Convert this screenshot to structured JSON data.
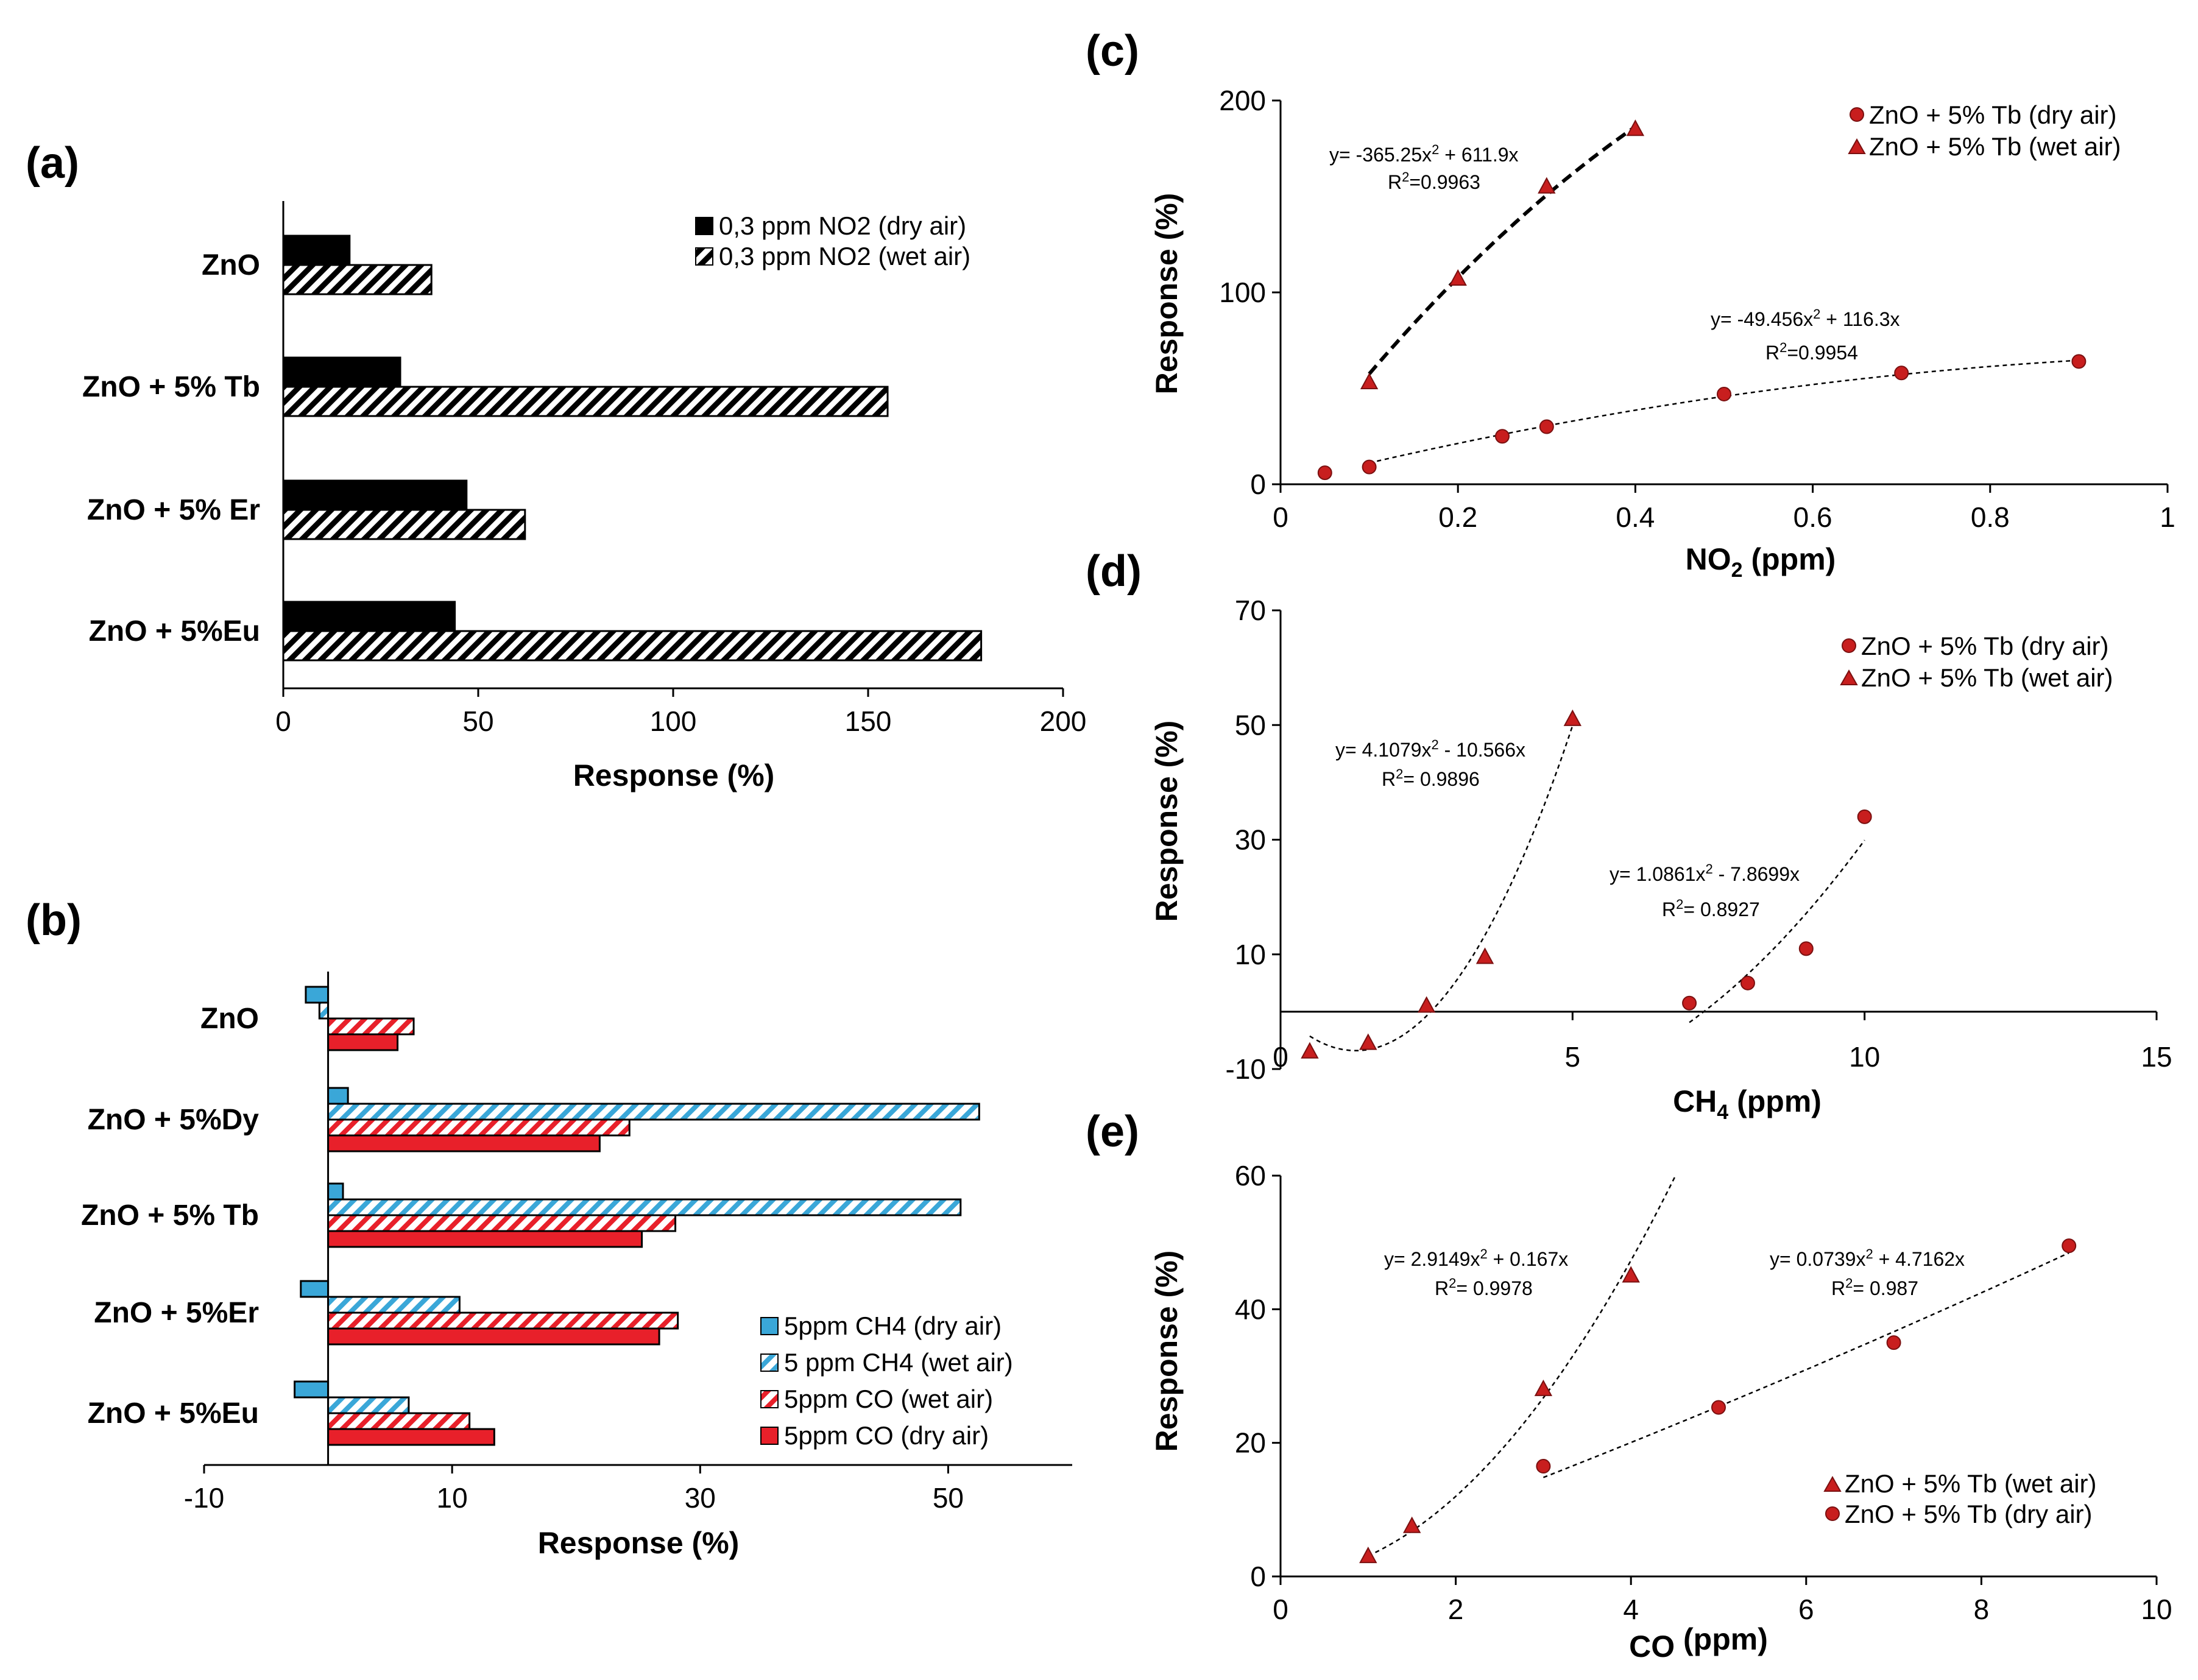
{
  "colors": {
    "dark": "#000000",
    "blue": "#3aa7d8",
    "red": "#e8202a",
    "marker": "#c81e1e"
  },
  "chart_data": [
    {
      "panel": "(a)",
      "type": "bar",
      "orientation": "horizontal",
      "categories": [
        "ZnO",
        "ZnO + 5% Tb",
        "ZnO + 5% Er",
        "ZnO + 5%Eu"
      ],
      "series": [
        {
          "name": "0,3  ppm NO2 (dry air)",
          "values": [
            17,
            30,
            47,
            44
          ],
          "fill": "solid-black"
        },
        {
          "name": "0,3  ppm NO2 (wet air)",
          "values": [
            38,
            155,
            62,
            179
          ],
          "fill": "hatch-black"
        }
      ],
      "xlabel": "Response (%)",
      "xlim": [
        0,
        200
      ],
      "xticks": [
        "0",
        "50",
        "100",
        "150",
        "200"
      ],
      "legend": "top-right"
    },
    {
      "panel": "(b)",
      "type": "bar",
      "orientation": "horizontal",
      "categories": [
        "ZnO",
        "ZnO + 5%Dy",
        "ZnO + 5% Tb",
        "ZnO + 5%Er",
        "ZnO + 5%Eu"
      ],
      "series": [
        {
          "name": "5ppm  CH4 (dry air)",
          "values": [
            -1.8,
            1.6,
            1.2,
            -2.2,
            -2.7
          ],
          "fill": "solid-blue"
        },
        {
          "name": "5 ppm CH4 (wet air)",
          "values": [
            -0.7,
            52.5,
            51,
            10.6,
            6.5
          ],
          "fill": "hatch-blue"
        },
        {
          "name": "5ppm CO (wet air)",
          "values": [
            6.9,
            24.3,
            28,
            28.2,
            11.4
          ],
          "fill": "hatch-red"
        },
        {
          "name": "5ppm CO (dry air)",
          "values": [
            5.6,
            21.9,
            25.3,
            26.7,
            13.4
          ],
          "fill": "solid-red"
        }
      ],
      "xlabel": "Response (%)",
      "xlim": [
        -10,
        60
      ],
      "xticks": [
        "-10",
        "10",
        "30",
        "50"
      ],
      "legend": "bottom-right"
    },
    {
      "panel": "(c)",
      "type": "scatter",
      "xlabel_main": "NO",
      "xlabel_sub": "2",
      "xlabel_rest": " (ppm)",
      "ylabel": "Response (%)",
      "xlim": [
        0,
        1
      ],
      "ylim": [
        0,
        200
      ],
      "xticks": [
        "0",
        "0.2",
        "0.4",
        "0.6",
        "0.8",
        "1"
      ],
      "yticks": [
        "0",
        "100",
        "200"
      ],
      "series": [
        {
          "name": "ZnO + 5% Tb  (dry air)",
          "marker": "circle",
          "x": [
            0.05,
            0.1,
            0.25,
            0.3,
            0.5,
            0.7,
            0.9
          ],
          "y": [
            6,
            9,
            25,
            30,
            47,
            58,
            64
          ],
          "fit": {
            "a": -49.456,
            "b": 116.3,
            "c": 0,
            "x0": 0.1,
            "x1": 0.9
          }
        },
        {
          "name": "ZnO + 5% Tb  (wet air)",
          "marker": "triangle",
          "x": [
            0.1,
            0.2,
            0.3,
            0.4
          ],
          "y": [
            53,
            107,
            155,
            185
          ],
          "fit": {
            "a": -365.25,
            "b": 611.9,
            "c": 0,
            "x0": 0.1,
            "x1": 0.4
          }
        }
      ],
      "equations": [
        {
          "eq_pre": "y= -365.25x",
          "eq_sup": "2",
          "eq_post": " + 611.9x",
          "r_pre": "R",
          "r_sup": "2",
          "r_post": "=0.9963"
        },
        {
          "eq_pre": "y= -49.456x",
          "eq_sup": "2",
          "eq_post": " + 116.3x",
          "r_pre": "R",
          "r_sup": "2",
          "r_post": "=0.9954"
        }
      ],
      "legend": "top-right"
    },
    {
      "panel": "(d)",
      "type": "scatter",
      "xlabel_main": "CH",
      "xlabel_sub": "4",
      "xlabel_rest": " (ppm)",
      "ylabel": "Response (%)",
      "xlim": [
        0,
        15
      ],
      "ylim": [
        -10,
        70
      ],
      "xticks": [
        "0",
        "5",
        "10",
        "15"
      ],
      "yticks": [
        "-10",
        "10",
        "30",
        "50",
        "70"
      ],
      "series": [
        {
          "name": "ZnO + 5% Tb  (dry air)",
          "marker": "circle",
          "x": [
            7,
            8,
            9,
            10
          ],
          "y": [
            1.5,
            5,
            11,
            34
          ],
          "fit": {
            "a": 1.0861,
            "b": -7.8699,
            "c": 0,
            "x0": 7,
            "x1": 10
          }
        },
        {
          "name": "ZnO + 5% Tb  (wet air)",
          "marker": "triangle",
          "x": [
            0.5,
            1.5,
            2.5,
            3.5,
            5
          ],
          "y": [
            -7,
            -5.5,
            1,
            9.5,
            51
          ],
          "fit": {
            "a": 4.1079,
            "b": -10.566,
            "c": 0,
            "x0": 0.5,
            "x1": 5
          }
        }
      ],
      "equations": [
        {
          "eq_pre": "y= 4.1079x",
          "eq_sup": "2",
          "eq_post": " - 10.566x",
          "r_pre": "R",
          "r_sup": "2",
          "r_post": "=  0.9896"
        },
        {
          "eq_pre": "y= 1.0861x",
          "eq_sup": "2",
          "eq_post": " - 7.8699x",
          "r_pre": "R",
          "r_sup": "2",
          "r_post": "= 0.8927"
        }
      ],
      "legend": "top-right"
    },
    {
      "panel": "(e)",
      "type": "scatter",
      "xlabel_main": "CO",
      "xlabel_sub": "",
      "xlabel_rest": " (ppm)",
      "ylabel": "Response (%)",
      "xlim": [
        0,
        10
      ],
      "ylim": [
        0,
        60
      ],
      "xticks": [
        "0",
        "2",
        "4",
        "6",
        "8",
        "10"
      ],
      "yticks": [
        "0",
        "20",
        "40",
        "60"
      ],
      "series": [
        {
          "name": "ZnO + 5% Tb  (wet air)",
          "marker": "triangle",
          "x": [
            1,
            1.5,
            3,
            4
          ],
          "y": [
            3,
            7.5,
            28,
            45
          ],
          "fit": {
            "a": 2.9149,
            "b": 0.167,
            "c": 0,
            "x0": 1,
            "x1": 4.5
          }
        },
        {
          "name": "ZnO + 5% Tb  (dry air)",
          "marker": "circle",
          "x": [
            3,
            5,
            7,
            9
          ],
          "y": [
            16.5,
            25.3,
            35,
            49.5
          ],
          "fit": {
            "a": 0.0739,
            "b": 4.7162,
            "c": 0,
            "x0": 3,
            "x1": 9
          }
        }
      ],
      "equations": [
        {
          "eq_pre": "y= 2.9149x",
          "eq_sup": "2",
          "eq_post": " + 0.167x",
          "r_pre": "R",
          "r_sup": "2",
          "r_post": "= 0.9978"
        },
        {
          "eq_pre": "y= 0.0739x",
          "eq_sup": "2",
          "eq_post": " + 4.7162x",
          "r_pre": "R",
          "r_sup": "2",
          "r_post": "= 0.987"
        }
      ],
      "legend": "bottom-right"
    }
  ]
}
